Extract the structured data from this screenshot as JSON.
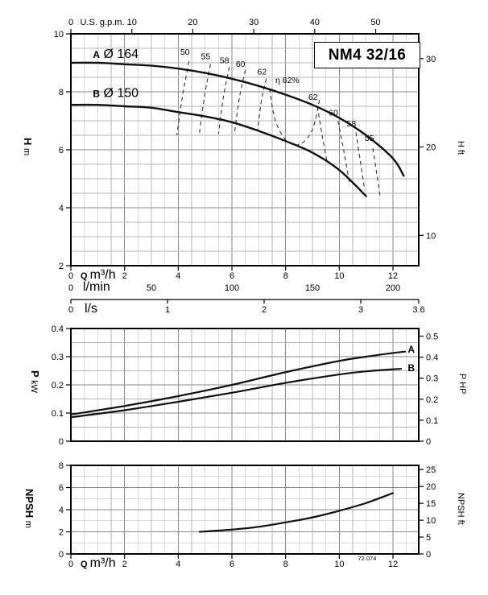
{
  "colors": {
    "curve": "#111111",
    "dashed": "#333333",
    "grid_minor": "#b4b4b4",
    "grid_major": "#8a8a8a",
    "axis": "#000000"
  },
  "catalog_code": "72.074",
  "chart_data": [
    {
      "id": "head",
      "type": "line",
      "title": "NM4 32/16",
      "xlim": [
        0,
        12.96
      ],
      "ylim": [
        2,
        10
      ],
      "x_scales": {
        "usgpm": {
          "label": "U.S. g.p.m.",
          "m3h_per_unit": 0.22712,
          "ticks": [
            0,
            10,
            20,
            30,
            40,
            50
          ]
        },
        "m3h": {
          "label_parts": [
            {
              "t": "Q ",
              "b": true
            },
            {
              "t": "m³/h"
            }
          ],
          "m3h_per_unit": 1,
          "ticks": [
            0,
            2,
            4,
            6,
            8,
            10,
            12
          ]
        },
        "lmin": {
          "label_parts": [
            {
              "t": "l/min"
            }
          ],
          "m3h_per_unit": 0.06,
          "ticks": [
            0,
            50,
            100,
            150,
            200
          ]
        },
        "ls": {
          "label_parts": [
            {
              "t": "l/s"
            }
          ],
          "m3h_per_unit": 3.6,
          "ticks": [
            0,
            1,
            2,
            3,
            3.6
          ]
        }
      },
      "y_left": {
        "label_parts": [
          {
            "t": "H ",
            "b": true
          },
          {
            "t": "m"
          }
        ],
        "ticks": [
          2,
          4,
          6,
          8,
          10
        ]
      },
      "y_right": {
        "label": "H ft",
        "m_per_unit": 0.3048,
        "ticks": [
          10,
          20,
          30
        ]
      },
      "series": [
        {
          "name": "A",
          "label_parts": [
            {
              "t": "A",
              "b": true
            },
            {
              "t": " Ø 164"
            }
          ],
          "label_xy": [
            0.82,
            9.17
          ],
          "points": [
            [
              0,
              9.0
            ],
            [
              1,
              9.0
            ],
            [
              2,
              8.95
            ],
            [
              3,
              8.9
            ],
            [
              4,
              8.8
            ],
            [
              5,
              8.65
            ],
            [
              6,
              8.45
            ],
            [
              7,
              8.2
            ],
            [
              8,
              7.9
            ],
            [
              9,
              7.55
            ],
            [
              10,
              7.1
            ],
            [
              11,
              6.5
            ],
            [
              12,
              5.7
            ],
            [
              12.4,
              5.1
            ]
          ]
        },
        {
          "name": "B",
          "label_parts": [
            {
              "t": "B",
              "b": true
            },
            {
              "t": " Ø 150"
            }
          ],
          "label_xy": [
            0.82,
            7.82
          ],
          "points": [
            [
              0,
              7.55
            ],
            [
              1,
              7.55
            ],
            [
              2,
              7.5
            ],
            [
              3,
              7.45
            ],
            [
              4,
              7.3
            ],
            [
              5,
              7.15
            ],
            [
              6,
              6.95
            ],
            [
              7,
              6.65
            ],
            [
              8,
              6.3
            ],
            [
              9,
              5.9
            ],
            [
              10,
              5.3
            ],
            [
              11,
              4.4
            ]
          ]
        }
      ],
      "efficiency_curves": [
        {
          "label": "50",
          "anchor": "middle",
          "label_xy": [
            4.25,
            9.28
          ],
          "points": [
            [
              4.4,
              9.05
            ],
            [
              4.15,
              7.8
            ],
            [
              3.95,
              6.5
            ]
          ]
        },
        {
          "label": "55",
          "anchor": "middle",
          "label_xy": [
            5.02,
            9.12
          ],
          "points": [
            [
              5.2,
              8.95
            ],
            [
              4.97,
              7.8
            ],
            [
              4.78,
              6.5
            ]
          ]
        },
        {
          "label": "58",
          "anchor": "middle",
          "label_xy": [
            5.72,
            8.98
          ],
          "points": [
            [
              5.9,
              8.85
            ],
            [
              5.68,
              7.8
            ],
            [
              5.5,
              6.55
            ]
          ]
        },
        {
          "label": "60",
          "anchor": "middle",
          "label_xy": [
            6.32,
            8.86
          ],
          "points": [
            [
              6.5,
              8.75
            ],
            [
              6.28,
              7.8
            ],
            [
              6.1,
              6.6
            ]
          ]
        },
        {
          "label": "62",
          "anchor": "middle",
          "label_xy": [
            7.12,
            8.6
          ],
          "points": [
            [
              7.28,
              8.45
            ],
            [
              7.1,
              7.7
            ],
            [
              6.95,
              6.65
            ]
          ]
        },
        {
          "label": "η 62%",
          "anchor": "start",
          "label_xy": [
            7.62,
            8.3
          ],
          "points": [
            [
              7.4,
              8.1
            ],
            [
              7.62,
              7.0
            ],
            [
              8.05,
              6.3
            ],
            [
              8.55,
              6.2
            ],
            [
              9.0,
              6.7
            ],
            [
              9.28,
              7.8
            ]
          ]
        },
        {
          "label": "62",
          "anchor": "middle",
          "label_xy": [
            9.02,
            7.72
          ],
          "points": [
            [
              9.18,
              7.5
            ],
            [
              9.38,
              6.4
            ],
            [
              9.55,
              5.55
            ]
          ]
        },
        {
          "label": "60",
          "anchor": "middle",
          "label_xy": [
            9.78,
            7.18
          ],
          "points": [
            [
              9.95,
              7.0
            ],
            [
              10.18,
              5.9
            ],
            [
              10.38,
              4.85
            ]
          ]
        },
        {
          "label": "58",
          "anchor": "middle",
          "label_xy": [
            10.45,
            6.8
          ],
          "points": [
            [
              10.62,
              6.6
            ],
            [
              10.8,
              5.5
            ],
            [
              10.95,
              4.6
            ]
          ]
        },
        {
          "label": "55",
          "anchor": "middle",
          "label_xy": [
            11.12,
            6.3
          ],
          "points": [
            [
              11.25,
              6.05
            ],
            [
              11.4,
              5.15
            ],
            [
              11.52,
              4.4
            ]
          ]
        }
      ]
    },
    {
      "id": "power",
      "type": "line",
      "xlim": [
        0,
        12.96
      ],
      "ylim": [
        0,
        0.4
      ],
      "y_left": {
        "label_parts": [
          {
            "t": "P ",
            "b": true
          },
          {
            "t": "kW"
          }
        ],
        "ticks": [
          0,
          0.1,
          0.2,
          0.3,
          0.4
        ]
      },
      "y_right": {
        "label": "P HP",
        "kw_per_unit": 0.7457,
        "ticks": [
          0,
          0.1,
          0.2,
          0.3,
          0.4,
          0.5
        ]
      },
      "series": [
        {
          "name": "A",
          "label_parts": [
            {
              "t": "A",
              "b": true
            }
          ],
          "label_xy": [
            12.55,
            0.314
          ],
          "points": [
            [
              0,
              0.095
            ],
            [
              2,
              0.125
            ],
            [
              4,
              0.16
            ],
            [
              6,
              0.2
            ],
            [
              8,
              0.245
            ],
            [
              10,
              0.285
            ],
            [
              11,
              0.3
            ],
            [
              12,
              0.313
            ],
            [
              12.45,
              0.318
            ]
          ]
        },
        {
          "name": "B",
          "label_parts": [
            {
              "t": "B",
              "b": true
            }
          ],
          "label_xy": [
            12.55,
            0.249
          ],
          "points": [
            [
              0,
              0.085
            ],
            [
              2,
              0.11
            ],
            [
              4,
              0.14
            ],
            [
              6,
              0.172
            ],
            [
              8,
              0.207
            ],
            [
              10,
              0.237
            ],
            [
              11,
              0.248
            ],
            [
              12.3,
              0.257
            ]
          ]
        }
      ]
    },
    {
      "id": "npsh",
      "type": "line",
      "xlim": [
        0,
        12.96
      ],
      "ylim": [
        0,
        8
      ],
      "x_scales": {
        "m3h": {
          "label_parts": [
            {
              "t": "Q ",
              "b": true
            },
            {
              "t": "m³/h"
            }
          ],
          "m3h_per_unit": 1,
          "ticks": [
            0,
            2,
            4,
            6,
            8,
            10,
            12
          ]
        }
      },
      "y_left": {
        "label_parts": [
          {
            "t": "NPSH ",
            "b": true
          },
          {
            "t": "m"
          }
        ],
        "ticks": [
          0,
          2,
          4,
          6,
          8
        ]
      },
      "y_right": {
        "label": "NPSH ft",
        "m_per_unit": 0.3048,
        "ticks": [
          0,
          5,
          10,
          15,
          20,
          25
        ]
      },
      "series": [
        {
          "name": "NPSH",
          "points": [
            [
              4.8,
              2.0
            ],
            [
              6,
              2.2
            ],
            [
              7,
              2.45
            ],
            [
              8,
              2.85
            ],
            [
              9,
              3.3
            ],
            [
              10,
              3.9
            ],
            [
              11,
              4.6
            ],
            [
              12,
              5.5
            ]
          ]
        }
      ]
    }
  ]
}
